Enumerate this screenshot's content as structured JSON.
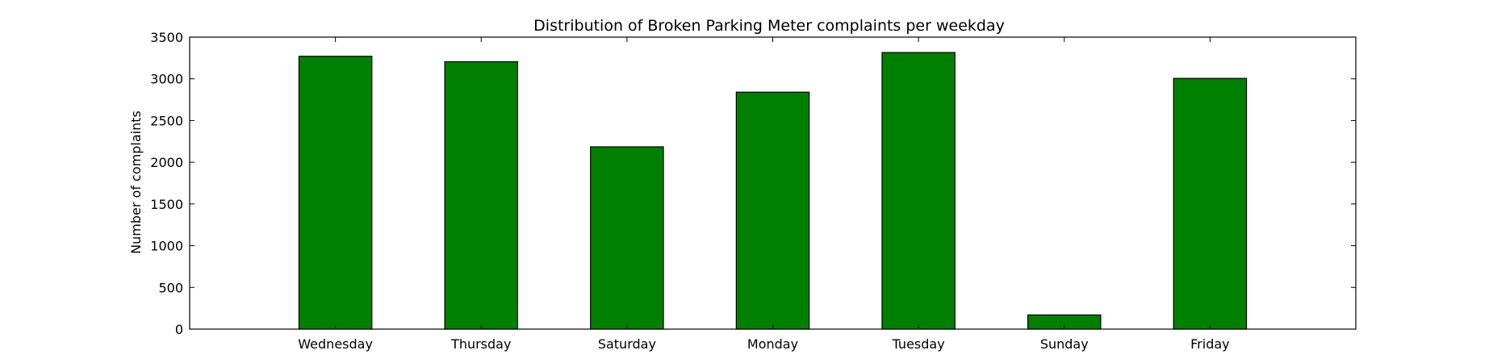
{
  "chart_data": {
    "type": "bar",
    "title": "Distribution of  Broken Parking Meter complaints per weekday",
    "xlabel": "",
    "ylabel": "Number of complaints",
    "categories": [
      "Wednesday",
      "Thursday",
      "Saturday",
      "Monday",
      "Tuesday",
      "Sunday",
      "Friday"
    ],
    "values": [
      3270,
      3205,
      2185,
      2840,
      3315,
      170,
      3005
    ],
    "ylim": [
      0,
      3500
    ],
    "yticks": [
      0,
      500,
      1000,
      1500,
      2000,
      2500,
      3000,
      3500
    ],
    "bar_color": "#008000",
    "grid": false
  }
}
